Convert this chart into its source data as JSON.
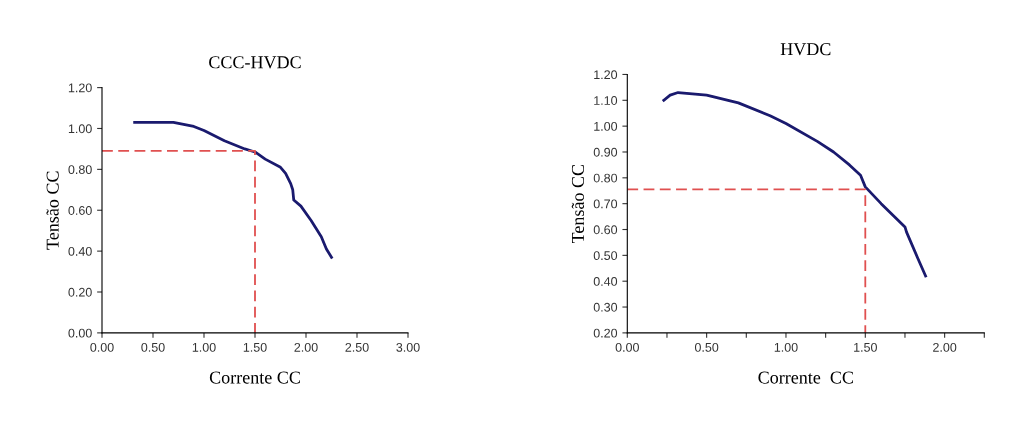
{
  "chart_data": [
    {
      "type": "line",
      "title": "CCC-HVDC",
      "xlabel": "Corrente CC",
      "ylabel": "Tensão CC",
      "xlim": [
        0,
        3
      ],
      "ylim": [
        0,
        1.2
      ],
      "xticks": [
        {
          "value": 0,
          "label": "0.00"
        },
        {
          "value": 0.5,
          "label": "0.50"
        },
        {
          "value": 1,
          "label": "1.00"
        },
        {
          "value": 1.5,
          "label": "1.50"
        },
        {
          "value": 2,
          "label": "2.00"
        },
        {
          "value": 2.5,
          "label": "2.50"
        },
        {
          "value": 3,
          "label": "3.00"
        }
      ],
      "yticks": [
        {
          "value": 0,
          "label": "0.00"
        },
        {
          "value": 0.2,
          "label": "0.20"
        },
        {
          "value": 0.4,
          "label": "0.40"
        },
        {
          "value": 0.6,
          "label": "0.60"
        },
        {
          "value": 0.8,
          "label": "0.80"
        },
        {
          "value": 1,
          "label": "1.00"
        },
        {
          "value": 1.2,
          "label": "1.20"
        }
      ],
      "series": [
        {
          "color": "#1a1a6e",
          "x": [
            0.32,
            0.5,
            0.7,
            0.9,
            1.0,
            1.2,
            1.4,
            1.5,
            1.6,
            1.75,
            1.8,
            1.85,
            1.87,
            1.88,
            1.95,
            2.05,
            2.15,
            2.2,
            2.25
          ],
          "values": [
            1.03,
            1.03,
            1.03,
            1.01,
            0.99,
            0.94,
            0.9,
            0.885,
            0.85,
            0.81,
            0.78,
            0.73,
            0.7,
            0.65,
            0.62,
            0.55,
            0.47,
            0.41,
            0.37
          ]
        },
        {
          "color": "#e05050",
          "line_style": "dashed",
          "x": [
            0,
            1.5,
            1.5
          ],
          "values": [
            0.89,
            0.89,
            0
          ]
        }
      ]
    },
    {
      "type": "line",
      "title": "HVDC",
      "xlabel": "Corrente  CC",
      "ylabel": "Tensão CC",
      "xlim": [
        0,
        2.25
      ],
      "ylim": [
        0.2,
        1.2
      ],
      "xticks": [
        {
          "value": 0,
          "label": "0.00"
        },
        {
          "value": 0.25,
          "label": null
        },
        {
          "value": 0.5,
          "label": "0.50"
        },
        {
          "value": 0.75,
          "label": null
        },
        {
          "value": 1,
          "label": "1.00"
        },
        {
          "value": 1.25,
          "label": null
        },
        {
          "value": 1.5,
          "label": "1.50"
        },
        {
          "value": 1.75,
          "label": null
        },
        {
          "value": 2,
          "label": "2.00"
        },
        {
          "value": 2.25,
          "label": null
        }
      ],
      "yticks": [
        {
          "value": 0.2,
          "label": "0.20"
        },
        {
          "value": 0.3,
          "label": "0.30"
        },
        {
          "value": 0.4,
          "label": "0.40"
        },
        {
          "value": 0.5,
          "label": "0.50"
        },
        {
          "value": 0.6,
          "label": "0.60"
        },
        {
          "value": 0.7,
          "label": "0.70"
        },
        {
          "value": 0.8,
          "label": "0.80"
        },
        {
          "value": 0.9,
          "label": "0.90"
        },
        {
          "value": 1,
          "label": "1.00"
        },
        {
          "value": 1.1,
          "label": "1.10"
        },
        {
          "value": 1.2,
          "label": "1.20"
        }
      ],
      "series": [
        {
          "color": "#1a1a6e",
          "x": [
            0.23,
            0.27,
            0.32,
            0.5,
            0.7,
            0.9,
            1.0,
            1.2,
            1.3,
            1.4,
            1.47,
            1.5,
            1.6,
            1.75,
            1.76,
            1.83,
            1.88
          ],
          "values": [
            1.1,
            1.12,
            1.13,
            1.12,
            1.09,
            1.04,
            1.01,
            0.94,
            0.9,
            0.85,
            0.81,
            0.765,
            0.7,
            0.61,
            0.59,
            0.49,
            0.42
          ]
        },
        {
          "color": "#e05050",
          "line_style": "dashed",
          "x": [
            0,
            1.5,
            1.5
          ],
          "values": [
            0.755,
            0.755,
            0.2
          ]
        }
      ]
    }
  ]
}
